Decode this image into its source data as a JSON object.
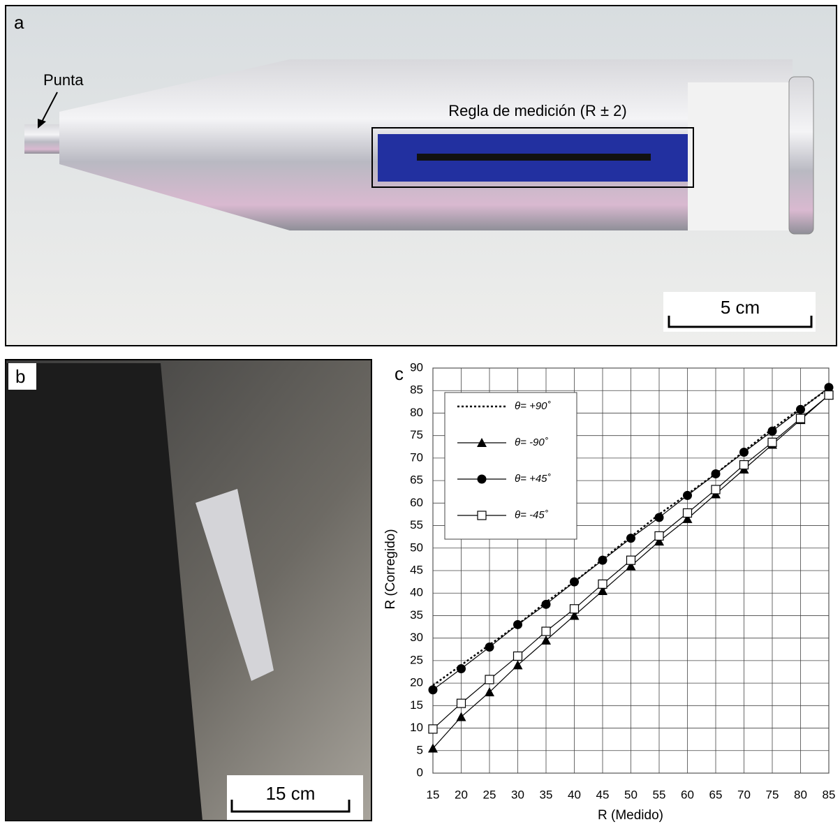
{
  "panel_a": {
    "label": "a",
    "tip_label": "Punta",
    "ruler_label": "Regla de medición (R ± 2)",
    "scale_bar": "5 cm"
  },
  "panel_b": {
    "label": "b",
    "scale_bar": "15 cm"
  },
  "chart_data": {
    "type": "line",
    "label": "c",
    "x_label": "R (Medido)",
    "y_label": "R (Corregido)",
    "x": [
      15,
      20,
      25,
      30,
      35,
      40,
      45,
      50,
      55,
      60,
      65,
      70,
      75,
      80,
      85
    ],
    "series": [
      {
        "name": "θ= +90˚",
        "color": "#000000",
        "marker": "none",
        "line_style": "dotted",
        "values": [
          19.5,
          24,
          28.5,
          33,
          38,
          42.5,
          47.5,
          52.5,
          57.5,
          62,
          66.5,
          71.5,
          76.5,
          81,
          85.5
        ]
      },
      {
        "name": "θ= -90˚",
        "color": "#000000",
        "marker": "triangle",
        "line_style": "solid",
        "values": [
          5.5,
          12.5,
          18,
          24,
          29.5,
          35,
          40.5,
          46,
          51.5,
          56.5,
          62,
          67.5,
          73,
          78.5,
          84
        ]
      },
      {
        "name": "θ= +45˚",
        "color": "#000000",
        "marker": "circle",
        "line_style": "solid",
        "values": [
          18.5,
          23.2,
          28,
          33,
          37.5,
          42.5,
          47.3,
          52.2,
          56.8,
          61.7,
          66.5,
          71.3,
          76,
          80.8,
          85.7
        ]
      },
      {
        "name": "θ= -45˚",
        "color": "#000000",
        "marker": "square",
        "line_style": "solid",
        "values": [
          9.8,
          15.5,
          20.8,
          26,
          31.5,
          36.5,
          42,
          47.3,
          52.7,
          57.8,
          63,
          68.5,
          73.5,
          78.8,
          84
        ]
      }
    ],
    "xlim": [
      15,
      85
    ],
    "xticks": [
      15,
      20,
      25,
      30,
      35,
      40,
      45,
      50,
      55,
      60,
      65,
      70,
      75,
      80,
      85
    ],
    "ylim": [
      0,
      90
    ],
    "yticks": [
      0,
      5,
      10,
      15,
      20,
      25,
      30,
      35,
      40,
      45,
      50,
      55,
      60,
      65,
      70,
      75,
      80,
      85,
      90
    ],
    "grid": true,
    "legend": "upper left"
  }
}
